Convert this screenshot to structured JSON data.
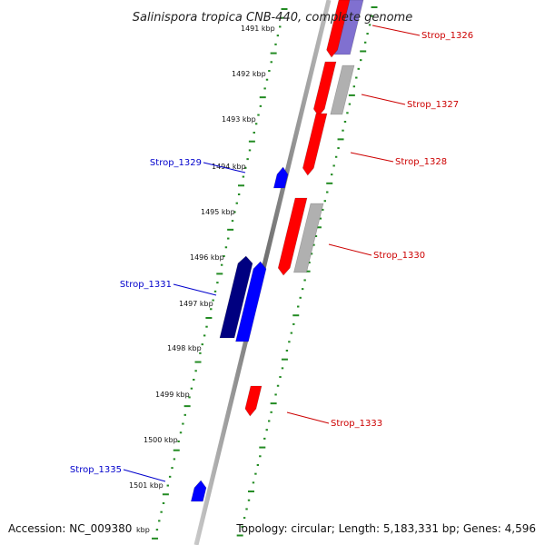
{
  "title": "Salinispora tropica CNB-440, complete genome",
  "footer": {
    "accession": "Accession: NC_009380",
    "topology": "Topology: circular; Length: 5,183,331 bp; Genes: 4,596"
  },
  "ticks": [
    {
      "label": "1491 kbp"
    },
    {
      "label": "1492 kbp"
    },
    {
      "label": "1493 kbp"
    },
    {
      "label": "1494 kbp"
    },
    {
      "label": "1495 kbp"
    },
    {
      "label": "1496 kbp"
    },
    {
      "label": "1497 kbp"
    },
    {
      "label": "1498 kbp"
    },
    {
      "label": "1499 kbp"
    },
    {
      "label": "1500 kbp"
    },
    {
      "label": "1501 kbp"
    },
    {
      "label": "kbp"
    }
  ],
  "genes": [
    {
      "name": "Strop_1326",
      "strand": "forward"
    },
    {
      "name": "Strop_1327",
      "strand": "forward"
    },
    {
      "name": "Strop_1328",
      "strand": "forward"
    },
    {
      "name": "Strop_1329",
      "strand": "reverse"
    },
    {
      "name": "Strop_1330",
      "strand": "forward"
    },
    {
      "name": "Strop_1331",
      "strand": "reverse"
    },
    {
      "name": "Strop_1333",
      "strand": "forward"
    },
    {
      "name": "Strop_1335",
      "strand": "reverse"
    }
  ],
  "colors": {
    "forward_gene": "#ff0000",
    "forward_label": "#cc0000",
    "reverse_gene": "#0000ff",
    "reverse_gene_dark": "#000080",
    "reverse_label": "#0000cc",
    "forward_shadow": "#b0b0b0",
    "reverse_shadow": "#8070d0",
    "backbone": "#808080",
    "tick": "#228b22"
  }
}
